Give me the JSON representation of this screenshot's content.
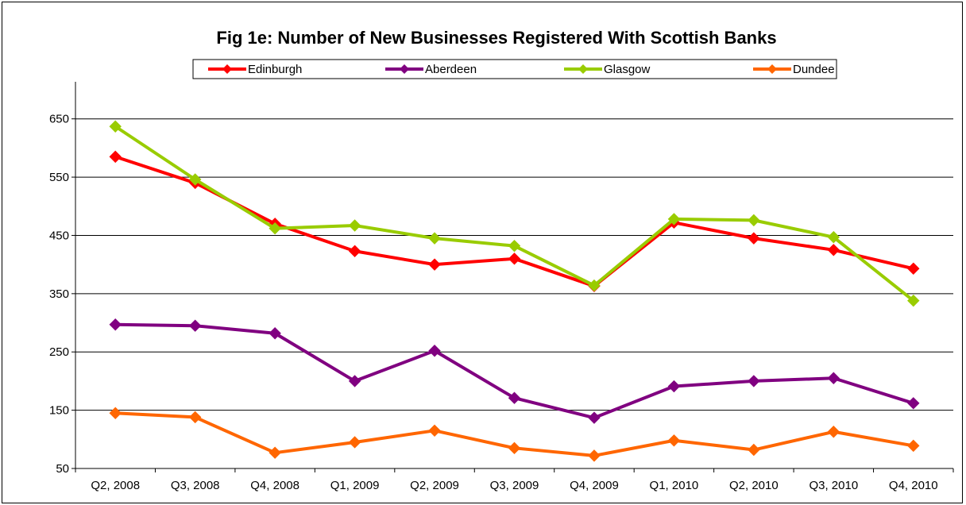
{
  "chart_data": {
    "type": "line",
    "title": "Fig 1e: Number of New Businesses Registered With Scottish Banks",
    "xlabel": "",
    "ylabel": "",
    "categories": [
      "Q2, 2008",
      "Q3, 2008",
      "Q4, 2008",
      "Q1, 2009",
      "Q2, 2009",
      "Q3, 2009",
      "Q4, 2009",
      "Q1, 2010",
      "Q2, 2010",
      "Q3, 2010",
      "Q4, 2010"
    ],
    "ylim": [
      50,
      700
    ],
    "yticks": [
      50,
      150,
      250,
      350,
      450,
      550,
      650
    ],
    "grid": true,
    "legend_position": "top",
    "series": [
      {
        "name": "Edinburgh",
        "color": "#ff0000",
        "marker": "diamond",
        "values": [
          585,
          540,
          470,
          423,
          400,
          410,
          363,
          472,
          445,
          425,
          393
        ]
      },
      {
        "name": "Aberdeen",
        "color": "#800080",
        "marker": "diamond",
        "values": [
          297,
          295,
          282,
          200,
          252,
          171,
          137,
          191,
          200,
          205,
          162
        ]
      },
      {
        "name": "Glasgow",
        "color": "#99cc00",
        "marker": "diamond",
        "values": [
          637,
          546,
          462,
          467,
          445,
          432,
          364,
          478,
          476,
          447,
          338
        ]
      },
      {
        "name": "Dundee",
        "color": "#ff6600",
        "marker": "diamond",
        "values": [
          145,
          138,
          77,
          95,
          115,
          85,
          72,
          98,
          82,
          113,
          89
        ]
      }
    ]
  }
}
